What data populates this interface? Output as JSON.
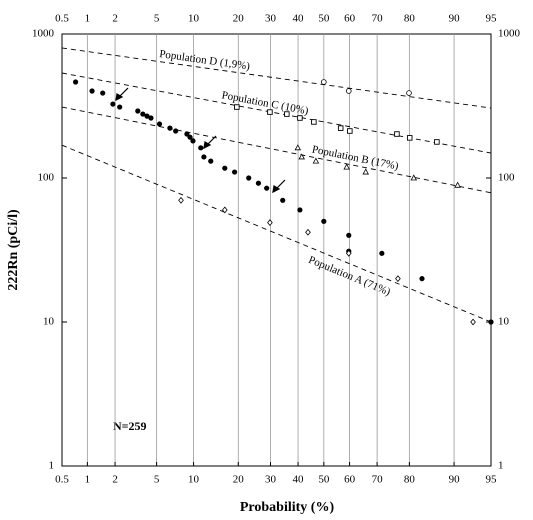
{
  "chart_data": {
    "type": "scatter",
    "xscale": "probability",
    "yscale": "log",
    "x_label": "Probability (%)",
    "y_label": "222Rn (pCi/l)",
    "annotation": "N=259",
    "xlim": [
      0.5,
      95
    ],
    "ylim": [
      1,
      1000
    ],
    "xticks": [
      0.5,
      1,
      2,
      5,
      10,
      20,
      30,
      40,
      50,
      60,
      70,
      80,
      90,
      95
    ],
    "yticks": [
      1,
      10,
      100,
      1000
    ],
    "grid": true,
    "series": [
      {
        "marker": "filled-circle",
        "color": "#000000",
        "x": [
          0.73,
          1.13,
          1.48,
          1.9,
          2.23,
          3.36,
          3.75,
          4.1,
          4.45,
          5.3,
          6.5,
          7.25,
          8.9,
          9.4,
          9.9,
          11.3,
          11.9,
          13.3,
          16.5,
          19,
          23,
          26,
          28.7,
          34.3,
          40.7,
          50,
          59.7,
          59.7,
          71.6,
          83.3,
          95
        ],
        "values": [
          464,
          402,
          389,
          326,
          311,
          292,
          278,
          269,
          261,
          237,
          222,
          212,
          202,
          192,
          181,
          162,
          140,
          131,
          117,
          110,
          100,
          92,
          85,
          70,
          60,
          50,
          40,
          31,
          30,
          20,
          10
        ]
      },
      {
        "marker": "open-diamond",
        "color": "#000000",
        "x": [
          8,
          16.5,
          29.8,
          43.8,
          59.7,
          76.7,
          92.9
        ],
        "values": [
          70,
          60,
          49,
          42,
          30,
          20,
          10
        ]
      },
      {
        "marker": "open-triangle",
        "color": "#000000",
        "x": [
          39.9,
          41.4,
          46.9,
          58.9,
          66,
          81.2,
          90.6
        ],
        "values": [
          162,
          140,
          131,
          119,
          110,
          100,
          89
        ]
      },
      {
        "marker": "open-square",
        "color": "#000000",
        "x": [
          19.6,
          29.8,
          35.8,
          40.7,
          46.1,
          56.6,
          60.1,
          76.4,
          80.1,
          86.7
        ],
        "values": [
          311,
          287,
          278,
          261,
          245,
          222,
          212,
          202,
          190,
          178
        ]
      },
      {
        "marker": "open-circle",
        "color": "#000000",
        "x": [
          50,
          59.7,
          79.9
        ],
        "values": [
          464,
          402,
          389
        ]
      }
    ],
    "lines": [
      {
        "label": "Population D (1,9%)",
        "x": [
          0.5,
          95
        ],
        "y": [
          800,
          306
        ]
      },
      {
        "label": "Population C (10%)",
        "x": [
          0.5,
          95
        ],
        "y": [
          536,
          149
        ]
      },
      {
        "label": "Population B (17%)",
        "x": [
          0.5,
          95
        ],
        "y": [
          311,
          79
        ]
      },
      {
        "label": "Population A (71%)",
        "x": [
          0.5,
          95
        ],
        "y": [
          169,
          10
        ]
      }
    ]
  }
}
